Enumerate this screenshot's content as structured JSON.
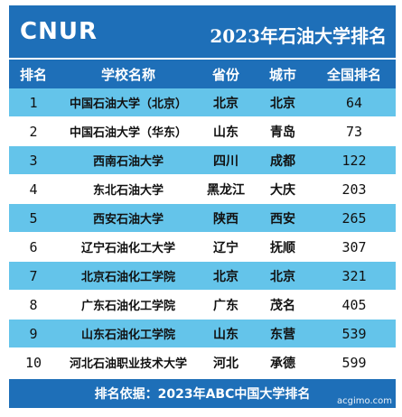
{
  "header": {
    "logo": "CNUR",
    "title": "2023年石油大学排名"
  },
  "columns": [
    "排名",
    "学校名称",
    "省份",
    "城市",
    "全国排名"
  ],
  "rows": [
    {
      "rank": "1",
      "name": "中国石油大学（北京）",
      "province": "北京",
      "city": "北京",
      "national": "64"
    },
    {
      "rank": "2",
      "name": "中国石油大学（华东）",
      "province": "山东",
      "city": "青岛",
      "national": "73"
    },
    {
      "rank": "3",
      "name": "西南石油大学",
      "province": "四川",
      "city": "成都",
      "national": "122"
    },
    {
      "rank": "4",
      "name": "东北石油大学",
      "province": "黑龙江",
      "city": "大庆",
      "national": "203"
    },
    {
      "rank": "5",
      "name": "西安石油大学",
      "province": "陕西",
      "city": "西安",
      "national": "265"
    },
    {
      "rank": "6",
      "name": "辽宁石油化工大学",
      "province": "辽宁",
      "city": "抚顺",
      "national": "307"
    },
    {
      "rank": "7",
      "name": "北京石油化工学院",
      "province": "北京",
      "city": "北京",
      "national": "321"
    },
    {
      "rank": "8",
      "name": "广东石油化工学院",
      "province": "广东",
      "city": "茂名",
      "national": "405"
    },
    {
      "rank": "9",
      "name": "山东石油化工学院",
      "province": "山东",
      "city": "东营",
      "national": "539"
    },
    {
      "rank": "10",
      "name": "河北石油职业技术大学",
      "province": "河北",
      "city": "承德",
      "national": "599"
    }
  ],
  "footer": {
    "text": "排名依据：2023年ABC中国大学排名"
  },
  "watermark": "acgimo.com",
  "colors": {
    "header_blue": "#1e6fb8",
    "row_highlight": "#64c4ea"
  }
}
